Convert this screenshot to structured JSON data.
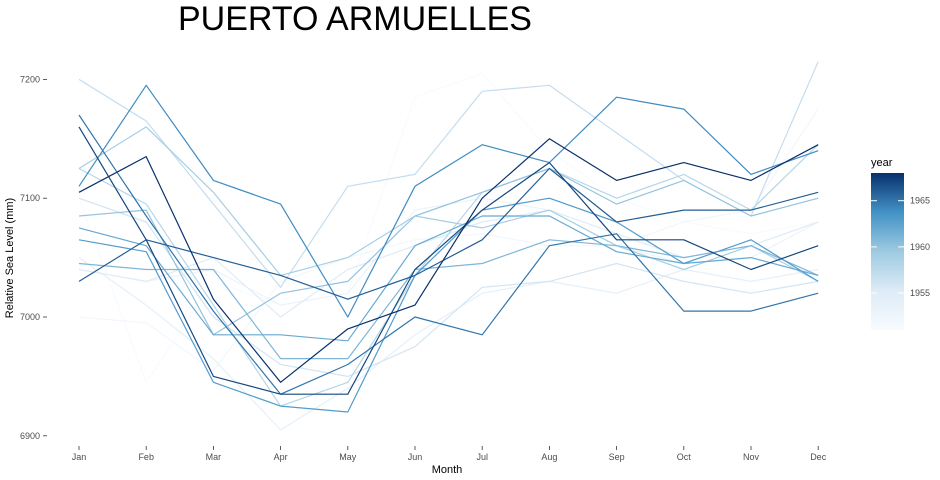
{
  "chart_data": {
    "type": "line",
    "title": "PUERTO ARMUELLES",
    "xlabel": "Month",
    "ylabel": "Relative Sea Level (mm)",
    "categories": [
      "Jan",
      "Feb",
      "Mar",
      "Apr",
      "May",
      "Jun",
      "Jul",
      "Aug",
      "Sep",
      "Oct",
      "Nov",
      "Dec"
    ],
    "yticks": [
      6900,
      7000,
      7100,
      7200
    ],
    "ylim": [
      6890,
      7220
    ],
    "grid": false,
    "legend": {
      "title": "year",
      "position": "right",
      "type": "colorbar",
      "range": [
        1951,
        1968
      ],
      "ticks": [
        1955,
        1960,
        1965
      ],
      "color_low": "#f7fbff",
      "color_high": "#08306b"
    },
    "series": [
      {
        "year": 1951,
        "values": [
          7100,
          6945,
          7030,
          7010,
          7020,
          7185,
          7205,
          7140,
          7100,
          7080,
          7070,
          7080
        ]
      },
      {
        "year": 1952,
        "values": [
          7000,
          6995,
          6955,
          7030,
          7050,
          7065,
          7070,
          7060,
          7060,
          7080,
          7090,
          7175
        ]
      },
      {
        "year": 1953,
        "values": [
          7040,
          7030,
          7040,
          7010,
          7020,
          7090,
          7100,
          7090,
          7060,
          7045,
          7050,
          7080
        ]
      },
      {
        "year": 1954,
        "values": [
          7050,
          7010,
          6965,
          6905,
          6940,
          6985,
          7020,
          7030,
          7020,
          7040,
          7030,
          7040
        ]
      },
      {
        "year": 1955,
        "values": [
          7040,
          7030,
          7050,
          7000,
          7040,
          7060,
          7080,
          7090,
          7070,
          7050,
          7060,
          7080
        ]
      },
      {
        "year": 1956,
        "values": [
          7100,
          7080,
          7000,
          6960,
          6950,
          6975,
          7025,
          7030,
          7045,
          7030,
          7020,
          7030
        ]
      },
      {
        "year": 1957,
        "values": [
          7200,
          7165,
          7095,
          7025,
          7110,
          7120,
          7190,
          7195,
          7155,
          7115,
          7085,
          7215
        ]
      },
      {
        "year": 1958,
        "values": [
          7125,
          7095,
          7010,
          6925,
          6945,
          7035,
          7105,
          7125,
          7100,
          7120,
          7090,
          7145
        ]
      },
      {
        "year": 1959,
        "values": [
          7125,
          7160,
          7105,
          7035,
          7050,
          7085,
          7075,
          7090,
          7060,
          7040,
          7060,
          7030
        ]
      },
      {
        "year": 1960,
        "values": [
          7085,
          7090,
          6985,
          7020,
          7030,
          7085,
          7105,
          7125,
          7095,
          7115,
          7085,
          7100
        ]
      },
      {
        "year": 1961,
        "values": [
          7045,
          7040,
          7040,
          6965,
          6965,
          7040,
          7045,
          7065,
          7060,
          7050,
          7060,
          7035
        ]
      },
      {
        "year": 1962,
        "values": [
          7075,
          7060,
          6985,
          6985,
          6980,
          7060,
          7085,
          7085,
          7055,
          7045,
          7050,
          7035
        ]
      },
      {
        "year": 1963,
        "values": [
          7065,
          7055,
          6945,
          6925,
          6920,
          7035,
          7090,
          7100,
          7080,
          7045,
          7065,
          7030
        ]
      },
      {
        "year": 1964,
        "values": [
          7110,
          7195,
          7115,
          7095,
          7000,
          7110,
          7145,
          7130,
          7185,
          7175,
          7120,
          7140
        ]
      },
      {
        "year": 1965,
        "values": [
          7170,
          7085,
          7005,
          6935,
          6960,
          7000,
          6985,
          7060,
          7070,
          7005,
          7005,
          7020
        ]
      },
      {
        "year": 1966,
        "values": [
          7030,
          7065,
          7050,
          7035,
          7015,
          7035,
          7065,
          7125,
          7080,
          7090,
          7090,
          7105
        ]
      },
      {
        "year": 1967,
        "values": [
          7160,
          7065,
          6950,
          6935,
          6935,
          7040,
          7090,
          7130,
          7065,
          7065,
          7040,
          7060
        ]
      },
      {
        "year": 1968,
        "values": [
          7105,
          7135,
          7015,
          6945,
          6990,
          7010,
          7100,
          7150,
          7115,
          7130,
          7115,
          7145
        ]
      }
    ]
  }
}
